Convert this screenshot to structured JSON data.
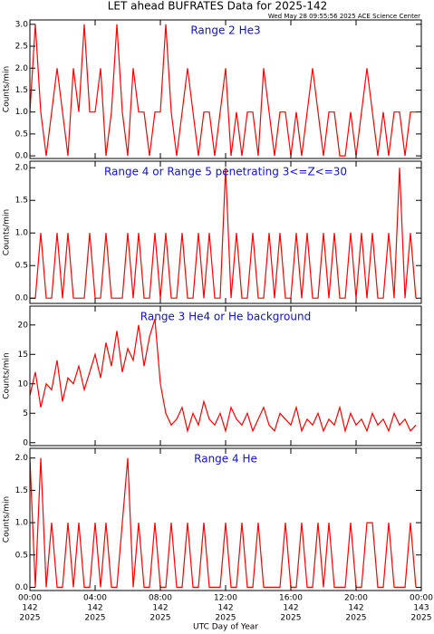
{
  "title": "LET ahead BUFRATES Data for 2025-142",
  "subtitle": "Wed May 28 09:55:56 2025 ACE Science Center",
  "xlabel": "UTC Day of Year",
  "xlim": [
    0,
    1440
  ],
  "xticks": [
    {
      "value": 0,
      "label": [
        "00:00",
        "142",
        "2025"
      ]
    },
    {
      "value": 240,
      "label": [
        "04:00",
        "142",
        "2025"
      ]
    },
    {
      "value": 480,
      "label": [
        "08:00",
        "142",
        "2025"
      ]
    },
    {
      "value": 720,
      "label": [
        "12:00",
        "142",
        "2025"
      ]
    },
    {
      "value": 960,
      "label": [
        "16:00",
        "142",
        "2025"
      ]
    },
    {
      "value": 1200,
      "label": [
        "20:00",
        "142",
        "2025"
      ]
    },
    {
      "value": 1440,
      "label": [
        "00:00",
        "143",
        "2025"
      ]
    }
  ],
  "chart_data": [
    {
      "type": "line",
      "title": "Range 2 He3",
      "ylabel": "Counts/min",
      "color": "#ff0000",
      "ylim": [
        -0.06,
        3.1
      ],
      "yticks": [
        {
          "value": 0,
          "label": "0.0"
        },
        {
          "value": 0.5,
          "label": "0.5"
        },
        {
          "value": 1,
          "label": "1.0"
        },
        {
          "value": 1.5,
          "label": "1.5"
        },
        {
          "value": 2,
          "label": "2.0"
        },
        {
          "value": 2.5,
          "label": "2.5"
        },
        {
          "value": 3,
          "label": "3.0"
        }
      ],
      "x": [
        0,
        20,
        40,
        60,
        80,
        100,
        120,
        140,
        160,
        180,
        200,
        220,
        240,
        260,
        280,
        300,
        320,
        340,
        360,
        380,
        400,
        420,
        440,
        460,
        480,
        500,
        520,
        540,
        560,
        580,
        600,
        620,
        640,
        660,
        680,
        700,
        720,
        740,
        760,
        780,
        800,
        820,
        840,
        860,
        880,
        900,
        920,
        940,
        960,
        980,
        1000,
        1020,
        1040,
        1060,
        1080,
        1100,
        1120,
        1140,
        1160,
        1180,
        1200,
        1220,
        1240,
        1260,
        1280,
        1300,
        1320,
        1340,
        1360,
        1380,
        1400,
        1420
      ],
      "values": [
        1,
        3,
        1,
        0,
        1,
        2,
        1,
        0,
        2,
        1,
        3,
        1,
        1,
        2,
        0,
        1,
        3,
        1,
        0,
        2,
        1,
        1,
        0,
        1,
        1,
        3,
        1,
        0,
        1,
        2,
        1,
        0,
        1,
        1,
        0,
        1,
        2,
        0,
        1,
        0,
        1,
        1,
        0,
        2,
        1,
        0,
        1,
        1,
        0,
        1,
        0,
        1,
        2,
        1,
        0,
        1,
        1,
        0,
        0,
        1,
        0,
        1,
        2,
        1,
        0,
        1,
        0,
        1,
        1,
        0,
        1,
        1
      ]
    },
    {
      "type": "line",
      "title": "Range 4 or Range 5 penetrating 3<=Z<=30",
      "ylabel": "Counts/min",
      "color": "#ff0000",
      "ylim": [
        -0.08,
        2.1
      ],
      "yticks": [
        {
          "value": 0,
          "label": "0.0"
        },
        {
          "value": 0.5,
          "label": "0.5"
        },
        {
          "value": 1,
          "label": "1.0"
        },
        {
          "value": 1.5,
          "label": "1.5"
        },
        {
          "value": 2,
          "label": "2.0"
        }
      ],
      "x": [
        0,
        20,
        40,
        60,
        80,
        100,
        120,
        140,
        160,
        180,
        200,
        220,
        240,
        260,
        280,
        300,
        320,
        340,
        360,
        380,
        400,
        420,
        440,
        460,
        480,
        500,
        520,
        540,
        560,
        580,
        600,
        620,
        640,
        660,
        680,
        700,
        720,
        740,
        760,
        780,
        800,
        820,
        840,
        860,
        880,
        900,
        920,
        940,
        960,
        980,
        1000,
        1020,
        1040,
        1060,
        1080,
        1100,
        1120,
        1140,
        1160,
        1180,
        1200,
        1220,
        1240,
        1260,
        1280,
        1300,
        1320,
        1340,
        1360,
        1380,
        1400,
        1420
      ],
      "values": [
        0,
        0,
        1,
        0,
        0,
        1,
        0,
        1,
        0,
        0,
        0,
        1,
        0,
        0,
        1,
        0,
        0,
        0,
        1,
        0,
        1,
        0,
        0,
        1,
        0,
        1,
        0,
        0,
        1,
        0,
        0,
        1,
        0,
        1,
        0,
        0,
        2,
        0,
        1,
        0,
        0,
        1,
        0,
        0,
        1,
        0,
        1,
        0,
        0,
        1,
        0,
        1,
        0,
        0,
        1,
        0,
        1,
        0,
        0,
        1,
        0,
        1,
        0,
        1,
        0,
        0,
        1,
        0,
        2,
        0,
        1,
        0
      ]
    },
    {
      "type": "line",
      "title": "Range 3 He4 or He background",
      "ylabel": "Counts/min",
      "color": "#ff0000",
      "ylim": [
        -0.5,
        23.2
      ],
      "yticks": [
        0,
        5,
        10,
        15,
        20
      ],
      "x": [
        0,
        20,
        40,
        60,
        80,
        100,
        120,
        140,
        160,
        180,
        200,
        220,
        240,
        260,
        280,
        300,
        320,
        340,
        360,
        380,
        400,
        420,
        440,
        460,
        480,
        500,
        520,
        540,
        560,
        580,
        600,
        620,
        640,
        660,
        680,
        700,
        720,
        740,
        760,
        780,
        800,
        820,
        840,
        860,
        880,
        900,
        920,
        940,
        960,
        980,
        1000,
        1020,
        1040,
        1060,
        1080,
        1100,
        1120,
        1140,
        1160,
        1180,
        1200,
        1220,
        1240,
        1260,
        1280,
        1300,
        1320,
        1340,
        1360,
        1380,
        1400,
        1420
      ],
      "values": [
        8,
        12,
        6,
        10,
        9,
        14,
        7,
        11,
        10,
        13,
        9,
        12,
        15,
        11,
        17,
        13,
        19,
        12,
        16,
        14,
        20,
        13,
        18,
        21,
        10,
        5,
        3,
        4,
        6,
        2,
        5,
        3,
        7,
        4,
        3,
        5,
        2,
        6,
        4,
        3,
        5,
        2,
        4,
        6,
        3,
        2,
        5,
        4,
        3,
        6,
        2,
        4,
        3,
        5,
        2,
        4,
        3,
        6,
        2,
        5,
        3,
        4,
        2,
        5,
        3,
        4,
        2,
        5,
        3,
        4,
        2,
        3
      ]
    },
    {
      "type": "line",
      "title": "Range 4 He",
      "ylabel": "Counts/min",
      "color": "#ff0000",
      "ylim": [
        -0.05,
        2.15
      ],
      "yticks": [
        {
          "value": 0,
          "label": "0.0"
        },
        {
          "value": 0.5,
          "label": "0.5"
        },
        {
          "value": 1,
          "label": "1.0"
        },
        {
          "value": 1.5,
          "label": "1.5"
        },
        {
          "value": 2,
          "label": "2.0"
        }
      ],
      "x": [
        0,
        20,
        40,
        60,
        80,
        100,
        120,
        140,
        160,
        180,
        200,
        220,
        240,
        260,
        280,
        300,
        320,
        340,
        360,
        380,
        400,
        420,
        440,
        460,
        480,
        500,
        520,
        540,
        560,
        580,
        600,
        620,
        640,
        660,
        680,
        700,
        720,
        740,
        760,
        780,
        800,
        820,
        840,
        860,
        880,
        900,
        920,
        940,
        960,
        980,
        1000,
        1020,
        1040,
        1060,
        1080,
        1100,
        1120,
        1140,
        1160,
        1180,
        1200,
        1220,
        1240,
        1260,
        1280,
        1300,
        1320,
        1340,
        1360,
        1380,
        1400,
        1420
      ],
      "values": [
        2,
        0,
        2,
        0,
        1,
        0,
        0,
        1,
        0,
        1,
        0,
        0,
        1,
        0,
        1,
        0,
        0,
        1,
        2,
        0,
        1,
        0,
        0,
        1,
        0,
        0,
        1,
        0,
        0,
        1,
        0,
        0,
        1,
        0,
        0,
        0,
        1,
        0,
        0,
        1,
        0,
        0,
        1,
        0,
        0,
        0,
        0,
        1,
        0,
        0,
        1,
        0,
        0,
        1,
        0,
        1,
        0,
        0,
        0,
        1,
        0,
        0,
        1,
        1,
        0,
        0,
        1,
        0,
        0,
        0,
        1,
        0
      ]
    }
  ]
}
